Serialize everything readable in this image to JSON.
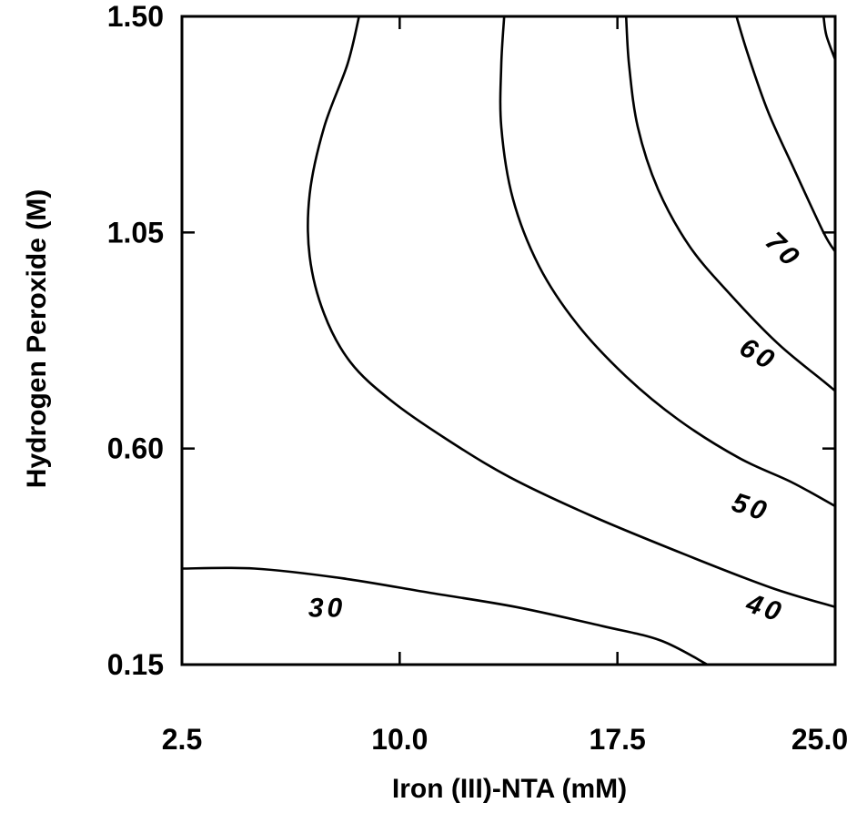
{
  "chart_data": {
    "type": "contour",
    "title": "",
    "xlabel": "Iron (III)-NTA (mM)",
    "ylabel": "Hydrogen Peroxide (M)",
    "xlim": [
      2.5,
      25.0
    ],
    "ylim": [
      0.15,
      1.5
    ],
    "xticks": [
      "2.5",
      "10.0",
      "17.5",
      "25.0"
    ],
    "yticks": [
      "0.15",
      "0.60",
      "1.05",
      "1.50"
    ],
    "grid": false,
    "contours": [
      {
        "level": "30",
        "points": [
          [
            2.5,
            0.35
          ],
          [
            5.0,
            0.35
          ],
          [
            8.0,
            0.33
          ],
          [
            11.0,
            0.3
          ],
          [
            14.0,
            0.27
          ],
          [
            17.0,
            0.23
          ],
          [
            19.0,
            0.2
          ],
          [
            20.6,
            0.15
          ]
        ],
        "label_at": [
          7.5,
          0.25
        ]
      },
      {
        "level": "40",
        "points": [
          [
            8.6,
            1.5
          ],
          [
            8.2,
            1.4
          ],
          [
            7.4,
            1.27
          ],
          [
            6.9,
            1.13
          ],
          [
            6.9,
            1.0
          ],
          [
            7.4,
            0.88
          ],
          [
            8.3,
            0.78
          ],
          [
            9.7,
            0.7
          ],
          [
            11.6,
            0.62
          ],
          [
            13.8,
            0.54
          ],
          [
            16.6,
            0.46
          ],
          [
            19.8,
            0.38
          ],
          [
            22.8,
            0.31
          ],
          [
            25.0,
            0.27
          ]
        ],
        "label_at": [
          22.5,
          0.25
        ]
      },
      {
        "level": "50",
        "points": [
          [
            13.6,
            1.5
          ],
          [
            13.5,
            1.4
          ],
          [
            13.5,
            1.27
          ],
          [
            13.9,
            1.12
          ],
          [
            14.8,
            0.98
          ],
          [
            16.1,
            0.86
          ],
          [
            17.8,
            0.75
          ],
          [
            19.6,
            0.66
          ],
          [
            21.7,
            0.58
          ],
          [
            23.5,
            0.53
          ],
          [
            25.0,
            0.48
          ]
        ],
        "label_at": [
          22.0,
          0.46
        ]
      },
      {
        "level": "60",
        "points": [
          [
            17.8,
            1.5
          ],
          [
            17.9,
            1.4
          ],
          [
            18.2,
            1.27
          ],
          [
            18.9,
            1.14
          ],
          [
            20.0,
            1.02
          ],
          [
            21.4,
            0.92
          ],
          [
            23.0,
            0.82
          ],
          [
            24.6,
            0.74
          ],
          [
            25.0,
            0.72
          ]
        ],
        "label_at": [
          22.2,
          0.78
        ]
      },
      {
        "level": "70",
        "points": [
          [
            21.6,
            1.5
          ],
          [
            22.0,
            1.42
          ],
          [
            22.7,
            1.3
          ],
          [
            23.6,
            1.18
          ],
          [
            24.6,
            1.05
          ],
          [
            25.0,
            1.01
          ]
        ],
        "label_at": [
          23.0,
          1.0
        ]
      },
      {
        "level": "",
        "points": [
          [
            24.6,
            1.5
          ],
          [
            24.7,
            1.46
          ],
          [
            25.0,
            1.41
          ]
        ]
      }
    ]
  }
}
